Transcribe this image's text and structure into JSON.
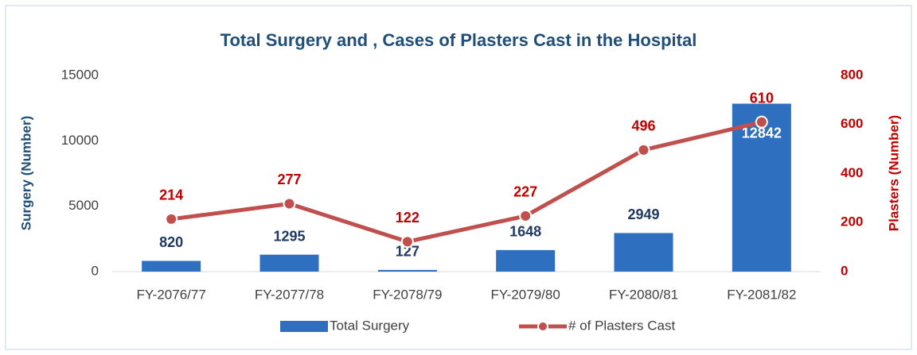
{
  "chart_data": {
    "type": "bar",
    "title": "Total Surgery and , Cases of Plasters Cast in the Hospital",
    "y_label": "Surgery (Number)",
    "y2_label": "Plasters (Number)",
    "categories": [
      "FY-2076/77",
      "FY-2077/78",
      "FY-2078/79",
      "FY-2079/80",
      "FY-2080/81",
      "FY-2081/82"
    ],
    "series": [
      {
        "name": "Total Surgery",
        "type": "bar",
        "color": "#2e6fbf",
        "values": [
          820,
          1295,
          127,
          1648,
          2949,
          12842
        ]
      },
      {
        "name": "# of Plasters Cast",
        "type": "line",
        "axis": "y2",
        "color": "#c0504d",
        "values": [
          214,
          277,
          122,
          227,
          496,
          610
        ]
      }
    ],
    "ylim": [
      0,
      15000
    ],
    "yticks": [
      0,
      5000,
      10000,
      15000
    ],
    "y2lim": [
      0,
      800
    ],
    "y2ticks": [
      0,
      200,
      400,
      600,
      800
    ],
    "grid": false,
    "legend": "bottom"
  }
}
